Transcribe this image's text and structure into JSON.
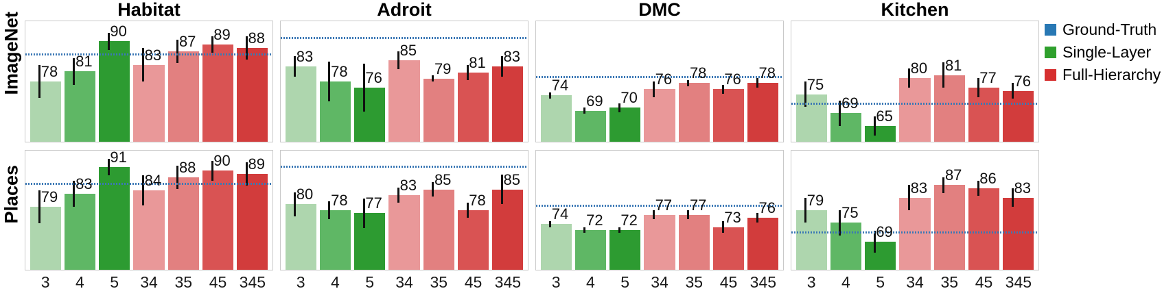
{
  "legend": {
    "items": [
      {
        "label": "Ground-Truth",
        "color": "#2878b4",
        "swatch": "blue-square-icon"
      },
      {
        "label": "Single-Layer",
        "color": "#2fa02d",
        "swatch": "green-square-icon"
      },
      {
        "label": "Full-Hierarchy",
        "color": "#d62f2f",
        "swatch": "red-square-icon"
      }
    ]
  },
  "chart_data": {
    "type": "bar",
    "categories": [
      "3",
      "4",
      "5",
      "34",
      "35",
      "45",
      "345"
    ],
    "bar_colors": [
      "#aed6ae",
      "#5fb765",
      "#2d9b31",
      "#e99899",
      "#e28080",
      "#d95353",
      "#d23c3c"
    ],
    "bar_color_meaning": {
      "greens_3_4_5": "Single-Layer",
      "reds_34_35_45_345": "Full-Hierarchy"
    },
    "gt_line_color": "#3b78b5",
    "grid": false,
    "legend_position": "top-right",
    "rows": [
      {
        "label": "ImageNet"
      },
      {
        "label": "Places"
      }
    ],
    "columns": [
      {
        "title": "Habitat",
        "ylim": [
          60,
          96
        ],
        "ground_truth": 86
      },
      {
        "title": "Adroit",
        "ylim": [
          58,
          98
        ],
        "ground_truth": 92.5
      },
      {
        "title": "DMC",
        "ylim": [
          59,
          98
        ],
        "ground_truth": 80
      },
      {
        "title": "Kitchen",
        "ylim": [
          60,
          98
        ],
        "ground_truth": 72
      }
    ],
    "panels": [
      {
        "row": "ImageNet",
        "col": "Habitat",
        "values": [
          78,
          81,
          90,
          83,
          87,
          89,
          88
        ],
        "errors": [
          5,
          4,
          2.5,
          5,
          3.5,
          2.5,
          3.5
        ]
      },
      {
        "row": "ImageNet",
        "col": "Adroit",
        "values": [
          83,
          78,
          76,
          85,
          79,
          81,
          83
        ],
        "errors": [
          3.5,
          6.5,
          8,
          3,
          1,
          2.5,
          3.5
        ]
      },
      {
        "row": "ImageNet",
        "col": "DMC",
        "values": [
          74,
          69,
          70,
          76,
          78,
          76,
          78
        ],
        "errors": [
          1,
          1,
          1.5,
          2.5,
          1,
          1.5,
          1.5
        ]
      },
      {
        "row": "ImageNet",
        "col": "Kitchen",
        "values": [
          75,
          69,
          65,
          80,
          81,
          77,
          76
        ],
        "errors": [
          4,
          4,
          3,
          3,
          4,
          3,
          2.5
        ]
      },
      {
        "row": "Places",
        "col": "Habitat",
        "values": [
          79,
          83,
          91,
          84,
          88,
          90,
          89
        ],
        "errors": [
          5,
          4,
          2.5,
          4.5,
          3.5,
          3,
          3.5
        ]
      },
      {
        "row": "Places",
        "col": "Adroit",
        "values": [
          80,
          78,
          77,
          83,
          85,
          78,
          85
        ],
        "errors": [
          4,
          3,
          5,
          2.5,
          2.5,
          2.5,
          5
        ]
      },
      {
        "row": "Places",
        "col": "DMC",
        "values": [
          74,
          72,
          72,
          77,
          77,
          73,
          76
        ],
        "errors": [
          1,
          1,
          1,
          1.5,
          1.5,
          2,
          1.5
        ]
      },
      {
        "row": "Places",
        "col": "Kitchen",
        "values": [
          79,
          75,
          69,
          83,
          87,
          86,
          83
        ],
        "errors": [
          4,
          4,
          3.5,
          4,
          2.5,
          2.5,
          3
        ]
      }
    ]
  }
}
